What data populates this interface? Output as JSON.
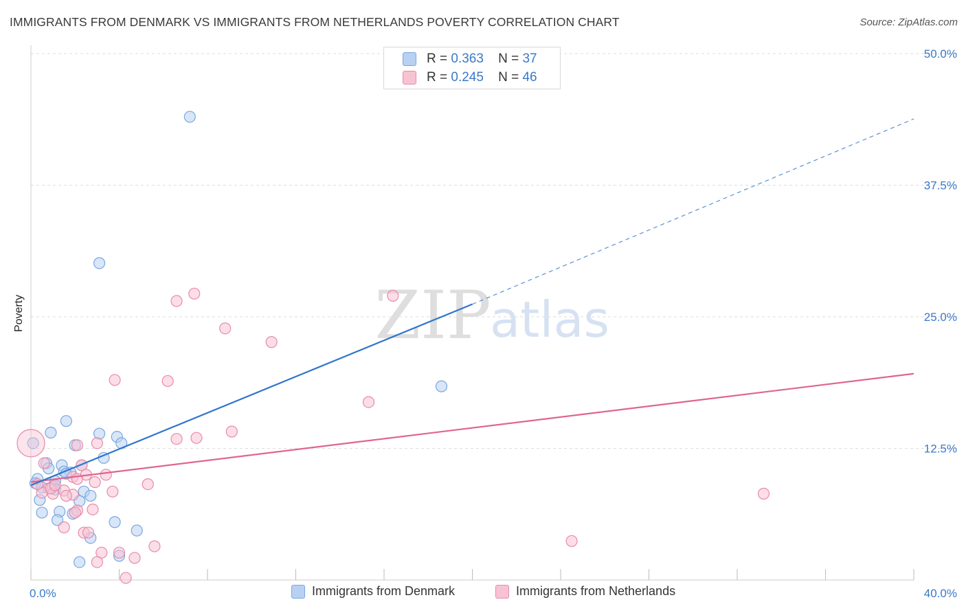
{
  "title": "IMMIGRANTS FROM DENMARK VS IMMIGRANTS FROM NETHERLANDS POVERTY CORRELATION CHART",
  "source": "Source: ZipAtlas.com",
  "watermark": {
    "zip": "ZIP",
    "atlas": "atlas"
  },
  "colors": {
    "denmark_fill": "#b8d1f2",
    "denmark_stroke": "#7aa6de",
    "denmark_line": "#2f74cc",
    "netherlands_fill": "#f7c3d3",
    "netherlands_stroke": "#e88aaa",
    "netherlands_line": "#e0648f",
    "tick_label": "#3a78c9",
    "grid": "#dddddd"
  },
  "legend": {
    "rows": [
      {
        "r_label": "R =",
        "r_value": "0.363",
        "n_label": "N =",
        "n_value": "37"
      },
      {
        "r_label": "R =",
        "r_value": "0.245",
        "n_label": "N =",
        "n_value": "46"
      }
    ],
    "bottom": [
      "Immigrants from Denmark",
      "Immigrants from Netherlands"
    ]
  },
  "chart_data": {
    "type": "scatter",
    "title": "IMMIGRANTS FROM DENMARK VS IMMIGRANTS FROM NETHERLANDS POVERTY CORRELATION CHART",
    "xlabel": "",
    "ylabel": "Poverty",
    "xlim": [
      0,
      40
    ],
    "ylim": [
      0,
      50
    ],
    "x_tick_labels": [
      "0.0%",
      "40.0%"
    ],
    "y_ticks": [
      12.5,
      25.0,
      37.5,
      50.0
    ],
    "y_tick_labels": [
      "12.5%",
      "25.0%",
      "37.5%",
      "50.0%"
    ],
    "series": [
      {
        "name": "Immigrants from Denmark",
        "r": 0.363,
        "n": 37,
        "trend": {
          "x0": 0,
          "y0": 9.0,
          "x1": 20,
          "y1": 26.2,
          "dashed_to_x": 40,
          "dashed_to_y": 43.8
        },
        "points": [
          [
            7.2,
            44.0
          ],
          [
            3.1,
            30.1
          ],
          [
            18.6,
            18.4
          ],
          [
            1.6,
            15.1
          ],
          [
            0.9,
            14.0
          ],
          [
            3.1,
            13.9
          ],
          [
            3.9,
            13.6
          ],
          [
            4.1,
            13.0
          ],
          [
            2.0,
            12.8
          ],
          [
            3.3,
            11.6
          ],
          [
            0.7,
            11.1
          ],
          [
            1.4,
            10.9
          ],
          [
            0.8,
            10.6
          ],
          [
            1.5,
            10.3
          ],
          [
            2.3,
            10.9
          ],
          [
            1.8,
            10.2
          ],
          [
            0.3,
            9.6
          ],
          [
            1.1,
            9.4
          ],
          [
            0.2,
            9.2
          ],
          [
            0.5,
            8.8
          ],
          [
            1.0,
            8.9
          ],
          [
            1.1,
            8.6
          ],
          [
            2.4,
            8.4
          ],
          [
            2.7,
            8.0
          ],
          [
            0.4,
            7.6
          ],
          [
            2.2,
            7.5
          ],
          [
            0.5,
            6.4
          ],
          [
            1.3,
            6.5
          ],
          [
            1.9,
            6.3
          ],
          [
            1.2,
            5.7
          ],
          [
            3.8,
            5.5
          ],
          [
            4.8,
            4.7
          ],
          [
            2.7,
            4.0
          ],
          [
            4.0,
            2.3
          ],
          [
            2.2,
            1.7
          ],
          [
            1.6,
            10.1
          ],
          [
            0.1,
            13.0
          ]
        ]
      },
      {
        "name": "Immigrants from Netherlands",
        "r": 0.245,
        "n": 46,
        "trend": {
          "x0": 0,
          "y0": 9.3,
          "x1": 40,
          "y1": 19.6
        },
        "points": [
          [
            7.4,
            27.2
          ],
          [
            16.4,
            27.0
          ],
          [
            6.6,
            26.5
          ],
          [
            8.8,
            23.9
          ],
          [
            10.9,
            22.6
          ],
          [
            3.8,
            19.0
          ],
          [
            6.2,
            18.9
          ],
          [
            15.3,
            16.9
          ],
          [
            9.1,
            14.1
          ],
          [
            6.6,
            13.4
          ],
          [
            7.5,
            13.5
          ],
          [
            3.0,
            13.0
          ],
          [
            2.1,
            12.8
          ],
          [
            0.6,
            11.1
          ],
          [
            2.3,
            10.9
          ],
          [
            2.5,
            10.0
          ],
          [
            1.9,
            9.8
          ],
          [
            3.4,
            10.0
          ],
          [
            2.1,
            9.6
          ],
          [
            0.8,
            8.7
          ],
          [
            1.5,
            8.5
          ],
          [
            0.5,
            8.3
          ],
          [
            1.0,
            8.2
          ],
          [
            1.9,
            8.1
          ],
          [
            3.7,
            8.4
          ],
          [
            0.3,
            9.1
          ],
          [
            5.3,
            9.1
          ],
          [
            2.8,
            6.7
          ],
          [
            2.1,
            6.6
          ],
          [
            2.0,
            6.4
          ],
          [
            1.5,
            5.0
          ],
          [
            2.4,
            4.5
          ],
          [
            2.6,
            4.5
          ],
          [
            3.2,
            2.6
          ],
          [
            4.0,
            2.6
          ],
          [
            4.7,
            2.1
          ],
          [
            5.6,
            3.2
          ],
          [
            3.0,
            1.7
          ],
          [
            4.3,
            0.2
          ],
          [
            33.2,
            8.2
          ],
          [
            24.5,
            3.7
          ],
          [
            0.9,
            8.7
          ],
          [
            1.1,
            9.0
          ],
          [
            2.9,
            9.3
          ],
          [
            1.6,
            8.0
          ],
          [
            0.0,
            13.0
          ]
        ]
      }
    ]
  }
}
